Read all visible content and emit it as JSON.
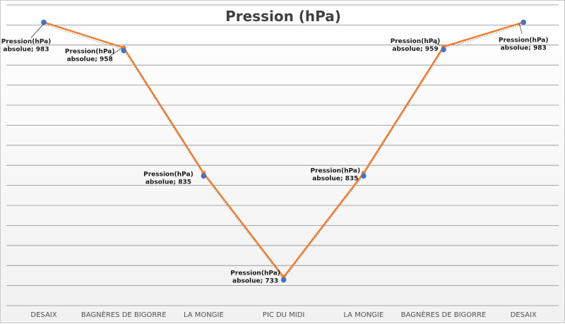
{
  "chart_data": {
    "type": "line",
    "title": "Pression (hPa)",
    "categories": [
      "DESAIX",
      "BAGNÈRES DE BIGORRE",
      "LA MONGIE",
      "PIC DU MIDI",
      "LA MONGIE",
      "BAGNÈRES DE BIGORRE",
      "DESAIX"
    ],
    "series": [
      {
        "name": "Pression(hPa) absolue",
        "values": [
          983,
          958,
          835,
          733,
          835,
          959,
          983
        ],
        "labels": [
          [
            "Pression(hPa)",
            "absolue; 983"
          ],
          [
            "Pression(hPa)",
            "absolue; 958"
          ],
          [
            "Pression(hPa)",
            "absolue; 835"
          ],
          [
            "Pression(hPa)",
            "absolue; 733"
          ],
          [
            "Pression(hPa)",
            "absolue; 835"
          ],
          [
            "Pression(hPa)",
            "absolue; 959"
          ],
          [
            "Pression(hPa)",
            "absolue; 983"
          ]
        ]
      }
    ],
    "ylim": [
      705,
      1000
    ],
    "grid": true,
    "legend": "none",
    "colors": {
      "line": "#ed7d31",
      "marker": "#4472c4",
      "grid": "#8c8c8c"
    }
  }
}
